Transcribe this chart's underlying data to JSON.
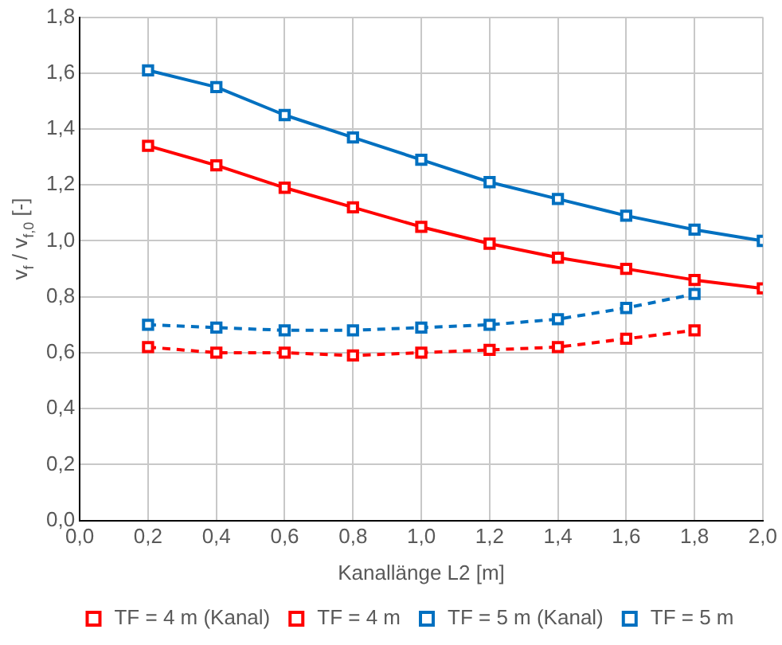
{
  "chart_data": {
    "type": "line",
    "xlabel": "Kanallänge L2 [m]",
    "ylabel": "v$_{f}$ / v$_{f,0}$ [-]",
    "x": [
      0.2,
      0.4,
      0.6,
      0.8,
      1.0,
      1.2,
      1.4,
      1.6,
      1.8,
      2.0
    ],
    "series": [
      {
        "name": "TF = 4 m (Kanal)",
        "color": "#ff0000",
        "line_style": "solid",
        "values": [
          1.34,
          1.27,
          1.19,
          1.12,
          1.05,
          0.99,
          0.94,
          0.9,
          0.86,
          0.83
        ]
      },
      {
        "name": "TF = 4 m",
        "color": "#ff0000",
        "line_style": "dashed",
        "values": [
          0.62,
          0.6,
          0.6,
          0.59,
          0.6,
          0.61,
          0.62,
          0.65,
          0.68,
          null
        ]
      },
      {
        "name": "TF = 5 m (Kanal)",
        "color": "#0070c0",
        "line_style": "solid",
        "values": [
          1.61,
          1.55,
          1.45,
          1.37,
          1.29,
          1.21,
          1.15,
          1.09,
          1.04,
          1.0
        ]
      },
      {
        "name": "TF = 5 m",
        "color": "#0070c0",
        "line_style": "dashed",
        "values": [
          0.7,
          0.69,
          0.68,
          0.68,
          0.69,
          0.7,
          0.72,
          0.76,
          0.81,
          null
        ]
      }
    ],
    "xlim": [
      0,
      2.0
    ],
    "xticks": [
      {
        "value": 0,
        "label": "0,0"
      },
      {
        "value": 0.2,
        "label": "0,2"
      },
      {
        "value": 0.4,
        "label": "0,4"
      },
      {
        "value": 0.6,
        "label": "0,6"
      },
      {
        "value": 0.8,
        "label": "0,8"
      },
      {
        "value": 1.0,
        "label": "1,0"
      },
      {
        "value": 1.2,
        "label": "1,2"
      },
      {
        "value": 1.4,
        "label": "1,4"
      },
      {
        "value": 1.6,
        "label": "1,6"
      },
      {
        "value": 1.8,
        "label": "1,8"
      },
      {
        "value": 2.0,
        "label": "2,0"
      }
    ],
    "ylim": [
      0,
      1.8
    ],
    "yticks": [
      {
        "value": 0,
        "label": "0,0"
      },
      {
        "value": 0.2,
        "label": "0,2"
      },
      {
        "value": 0.4,
        "label": "0,4"
      },
      {
        "value": 0.6,
        "label": "0,6"
      },
      {
        "value": 0.8,
        "label": "0,8"
      },
      {
        "value": 1.0,
        "label": "1,0"
      },
      {
        "value": 1.2,
        "label": "1,2"
      },
      {
        "value": 1.4,
        "label": "1,4"
      },
      {
        "value": 1.6,
        "label": "1,6"
      },
      {
        "value": 1.8,
        "label": "1,8"
      }
    ],
    "grid": true,
    "legend": "bottom",
    "marker": "square"
  }
}
